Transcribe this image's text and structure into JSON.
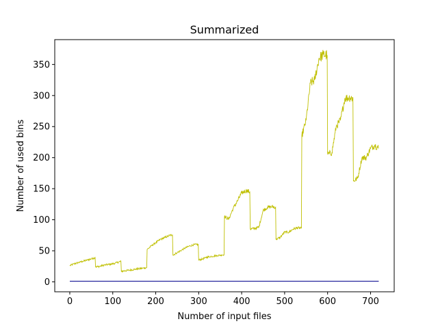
{
  "chart_data": {
    "type": "line",
    "title": "Summarized",
    "xlabel": "Number of input files",
    "ylabel": "Number of used bins",
    "xlim": [
      -35,
      755
    ],
    "ylim": [
      -16,
      390
    ],
    "xticks": [
      0,
      100,
      200,
      300,
      400,
      500,
      600,
      700
    ],
    "yticks": [
      0,
      50,
      100,
      150,
      200,
      250,
      300,
      350
    ],
    "grid": false,
    "legend": "none",
    "series": [
      {
        "color": "#bfbf00",
        "points": [
          [
            0,
            26
          ],
          [
            10,
            29
          ],
          [
            20,
            31
          ],
          [
            30,
            33
          ],
          [
            40,
            35
          ],
          [
            50,
            37
          ],
          [
            59,
            39
          ],
          [
            60,
            24
          ],
          [
            70,
            25
          ],
          [
            80,
            27
          ],
          [
            90,
            28
          ],
          [
            100,
            29
          ],
          [
            110,
            31
          ],
          [
            119,
            33
          ],
          [
            120,
            17
          ],
          [
            130,
            18
          ],
          [
            140,
            19
          ],
          [
            150,
            20
          ],
          [
            160,
            21
          ],
          [
            170,
            22
          ],
          [
            179,
            23
          ],
          [
            180,
            52
          ],
          [
            190,
            58
          ],
          [
            200,
            63
          ],
          [
            210,
            68
          ],
          [
            220,
            71
          ],
          [
            230,
            74
          ],
          [
            239,
            76
          ],
          [
            240,
            43
          ],
          [
            250,
            47
          ],
          [
            260,
            51
          ],
          [
            270,
            55
          ],
          [
            280,
            58
          ],
          [
            290,
            60
          ],
          [
            299,
            60
          ],
          [
            300,
            35
          ],
          [
            310,
            37
          ],
          [
            320,
            40
          ],
          [
            330,
            41
          ],
          [
            340,
            42
          ],
          [
            350,
            43
          ],
          [
            359,
            44
          ],
          [
            360,
            105
          ],
          [
            370,
            101
          ],
          [
            380,
            118
          ],
          [
            390,
            130
          ],
          [
            400,
            143
          ],
          [
            410,
            147
          ],
          [
            419,
            145
          ],
          [
            420,
            85
          ],
          [
            430,
            86
          ],
          [
            440,
            88
          ],
          [
            450,
            115
          ],
          [
            460,
            120
          ],
          [
            470,
            121
          ],
          [
            479,
            120
          ],
          [
            480,
            68
          ],
          [
            490,
            72
          ],
          [
            500,
            80
          ],
          [
            510,
            80
          ],
          [
            520,
            85
          ],
          [
            530,
            87
          ],
          [
            539,
            86
          ],
          [
            540,
            235
          ],
          [
            550,
            260
          ],
          [
            560,
            320
          ],
          [
            570,
            325
          ],
          [
            580,
            360
          ],
          [
            590,
            366
          ],
          [
            599,
            365
          ],
          [
            600,
            205
          ],
          [
            610,
            208
          ],
          [
            620,
            250
          ],
          [
            630,
            260
          ],
          [
            640,
            295
          ],
          [
            650,
            297
          ],
          [
            659,
            296
          ],
          [
            660,
            162
          ],
          [
            670,
            167
          ],
          [
            680,
            200
          ],
          [
            690,
            200
          ],
          [
            700,
            215
          ],
          [
            710,
            220
          ],
          [
            719,
            215
          ]
        ]
      },
      {
        "color": "#00008b",
        "points": [
          [
            0,
            1
          ],
          [
            719,
            1
          ]
        ]
      }
    ]
  }
}
